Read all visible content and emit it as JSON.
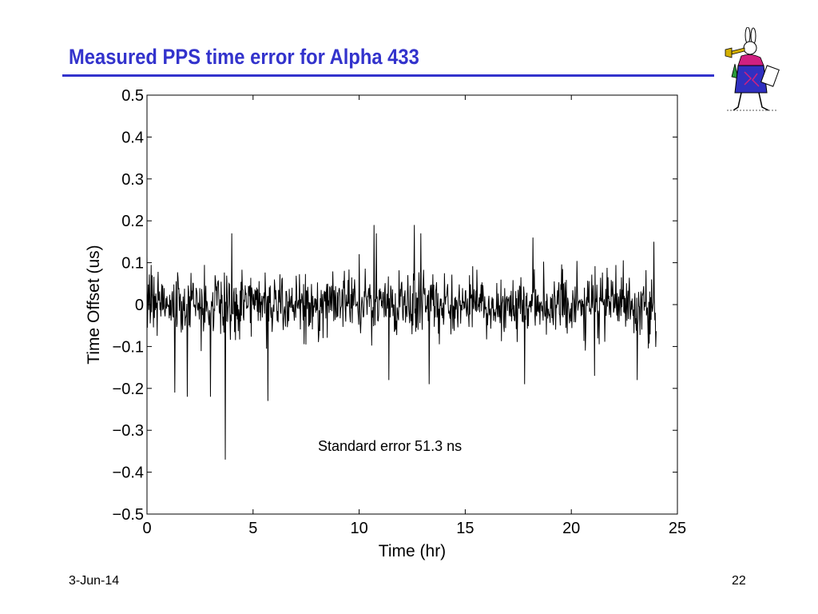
{
  "slide": {
    "title": "Measured PPS time error for Alpha 433",
    "date": "3-Jun-14",
    "page_number": "22",
    "logo_icon": "white-rabbit-herald-icon",
    "title_color": "#3333cc"
  },
  "chart_data": {
    "type": "line",
    "title": "",
    "xlabel": "Time (hr)",
    "ylabel": "Time Offset (us)",
    "xlim": [
      0,
      25
    ],
    "ylim": [
      -0.5,
      0.5
    ],
    "x_ticks": [
      0,
      5,
      10,
      15,
      20,
      25
    ],
    "x_tick_labels": [
      "0",
      "5",
      "10",
      "15",
      "20",
      "25"
    ],
    "y_ticks": [
      0.5,
      0.4,
      0.3,
      0.2,
      0.1,
      0,
      -0.1,
      -0.2,
      -0.3,
      -0.4,
      -0.5
    ],
    "y_tick_labels": [
      "0.5",
      "0.4",
      "0.3",
      "0.2",
      "0.1",
      "0",
      "−0.1",
      "−0.2",
      "−0.3",
      "−0.4",
      "−0.5"
    ],
    "grid": false,
    "line_color": "#000000",
    "annotation": "Standard error 51.3 ns",
    "x_range_of_data": [
      0,
      24
    ],
    "noise_std_us": 0.0513,
    "spikes": [
      {
        "x": 1.3,
        "y": -0.21
      },
      {
        "x": 1.9,
        "y": -0.22
      },
      {
        "x": 3.0,
        "y": -0.22
      },
      {
        "x": 3.7,
        "y": -0.37
      },
      {
        "x": 4.0,
        "y": 0.17
      },
      {
        "x": 5.7,
        "y": -0.23
      },
      {
        "x": 10.7,
        "y": 0.19
      },
      {
        "x": 10.8,
        "y": 0.17
      },
      {
        "x": 11.4,
        "y": -0.18
      },
      {
        "x": 12.6,
        "y": 0.19
      },
      {
        "x": 12.9,
        "y": 0.17
      },
      {
        "x": 13.3,
        "y": -0.19
      },
      {
        "x": 17.8,
        "y": -0.19
      },
      {
        "x": 18.2,
        "y": 0.16
      },
      {
        "x": 21.1,
        "y": -0.17
      },
      {
        "x": 23.1,
        "y": -0.18
      },
      {
        "x": 23.9,
        "y": 0.15
      }
    ]
  }
}
